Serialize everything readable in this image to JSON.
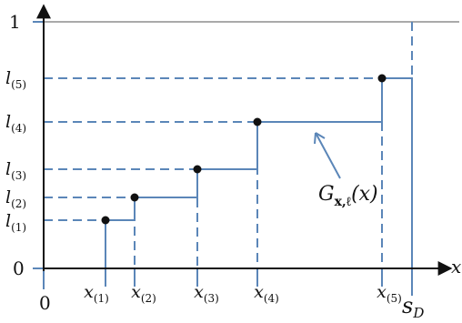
{
  "axes": {
    "x_label": "x",
    "origin_label": "0",
    "y_zero_label": "0",
    "y_top_label": "1"
  },
  "y_levels": [
    {
      "base": "l",
      "sub": "(1)"
    },
    {
      "base": "l",
      "sub": "(2)"
    },
    {
      "base": "l",
      "sub": "(3)"
    },
    {
      "base": "l",
      "sub": "(4)"
    },
    {
      "base": "l",
      "sub": "(5)"
    }
  ],
  "x_points": [
    {
      "base": "x",
      "sub": "(1)"
    },
    {
      "base": "x",
      "sub": "(2)"
    },
    {
      "base": "x",
      "sub": "(3)"
    },
    {
      "base": "x",
      "sub": "(4)"
    },
    {
      "base": "x",
      "sub": "(5)"
    }
  ],
  "x_end_label": {
    "base": "s",
    "sub": "D"
  },
  "function_label": {
    "base": "G",
    "sub": "x,ℓ",
    "arg": "(x)"
  },
  "colors": {
    "step": "#5b86b8",
    "axis": "#111111",
    "point": "#111111",
    "reference_line": "#555555"
  }
}
